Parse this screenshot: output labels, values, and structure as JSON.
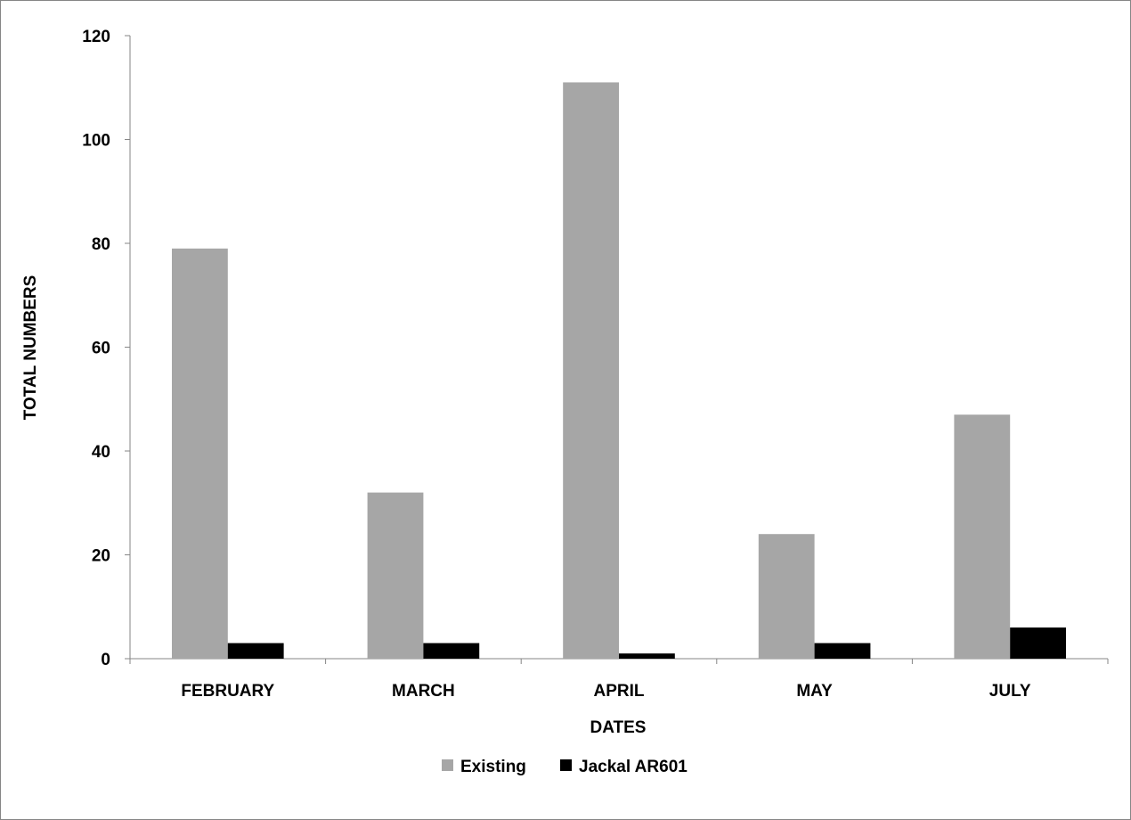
{
  "chart_data": {
    "type": "bar",
    "title": "",
    "xlabel": "DATES",
    "ylabel": "TOTAL NUMBERS",
    "categories": [
      "FEBRUARY",
      "MARCH",
      "APRIL",
      "MAY",
      "JULY"
    ],
    "series": [
      {
        "name": "Existing",
        "values": [
          79,
          32,
          111,
          24,
          47
        ],
        "color": "#a6a6a6"
      },
      {
        "name": "Jackal AR601",
        "values": [
          3,
          3,
          1,
          3,
          6
        ],
        "color": "#000000"
      }
    ],
    "ylim": [
      0,
      120
    ],
    "yticks": [
      "0",
      "20",
      "40",
      "60",
      "80",
      "100",
      "120"
    ],
    "grid": false,
    "legend_position": "bottom"
  }
}
